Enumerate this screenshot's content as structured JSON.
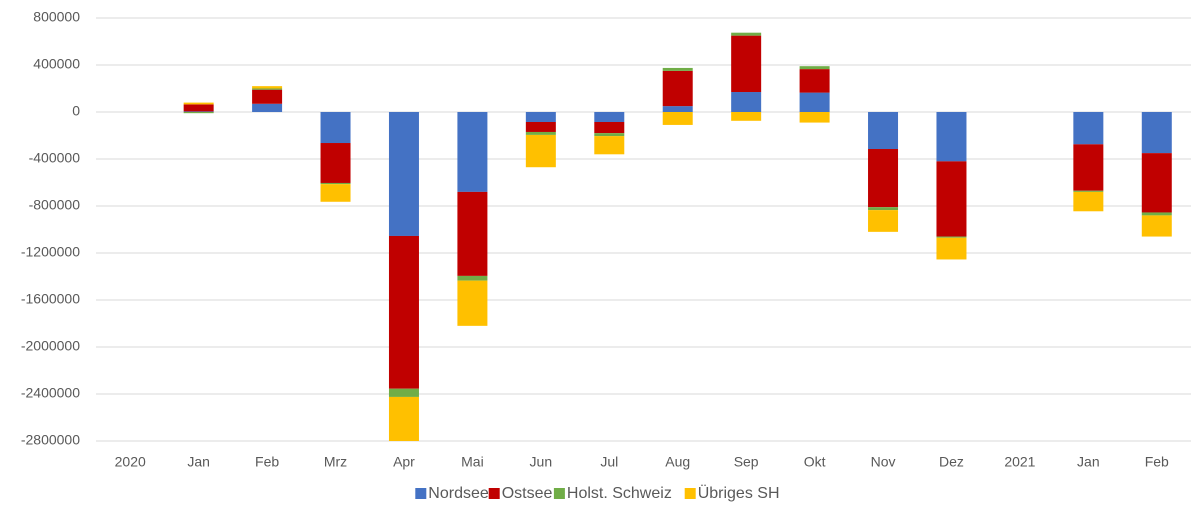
{
  "chart_data": {
    "type": "stacked-bar",
    "categories": [
      "2020",
      "Jan",
      "Feb",
      "Mrz",
      "Apr",
      "Mai",
      "Jun",
      "Jul",
      "Aug",
      "Sep",
      "Okt",
      "Nov",
      "Dez",
      "2021",
      "Jan",
      "Feb"
    ],
    "series": [
      {
        "name": "Nordsee",
        "color": "#4472c4",
        "values": [
          null,
          5000,
          70000,
          -264000,
          -1055000,
          -680000,
          -85000,
          -85000,
          50000,
          170000,
          165000,
          -315000,
          -420000,
          null,
          -275000,
          -350000
        ]
      },
      {
        "name": "Ostsee",
        "color": "#c00000",
        "values": [
          null,
          60000,
          120000,
          -340000,
          -1300000,
          -715000,
          -85000,
          -95000,
          300000,
          480000,
          200000,
          -495000,
          -640000,
          null,
          -395000,
          -505000
        ]
      },
      {
        "name": "Holst. Schweiz",
        "color": "#70ad47",
        "values": [
          null,
          -10000,
          10000,
          -10000,
          -70000,
          -40000,
          -25000,
          -25000,
          25000,
          25000,
          25000,
          -25000,
          -10000,
          null,
          -10000,
          -25000
        ]
      },
      {
        "name": "Übriges SH",
        "color": "#ffc000",
        "values": [
          null,
          15000,
          20000,
          -150000,
          -450000,
          -385000,
          -275000,
          -155000,
          -110000,
          -75000,
          -90000,
          -185000,
          -185000,
          null,
          -165000,
          -180000
        ]
      }
    ],
    "ylim": [
      -2800000,
      800000
    ],
    "yticks": [
      -2800000,
      -2400000,
      -2000000,
      -1600000,
      -1200000,
      -800000,
      -400000,
      0,
      400000,
      800000
    ],
    "grid": true,
    "legend": "bottom"
  }
}
